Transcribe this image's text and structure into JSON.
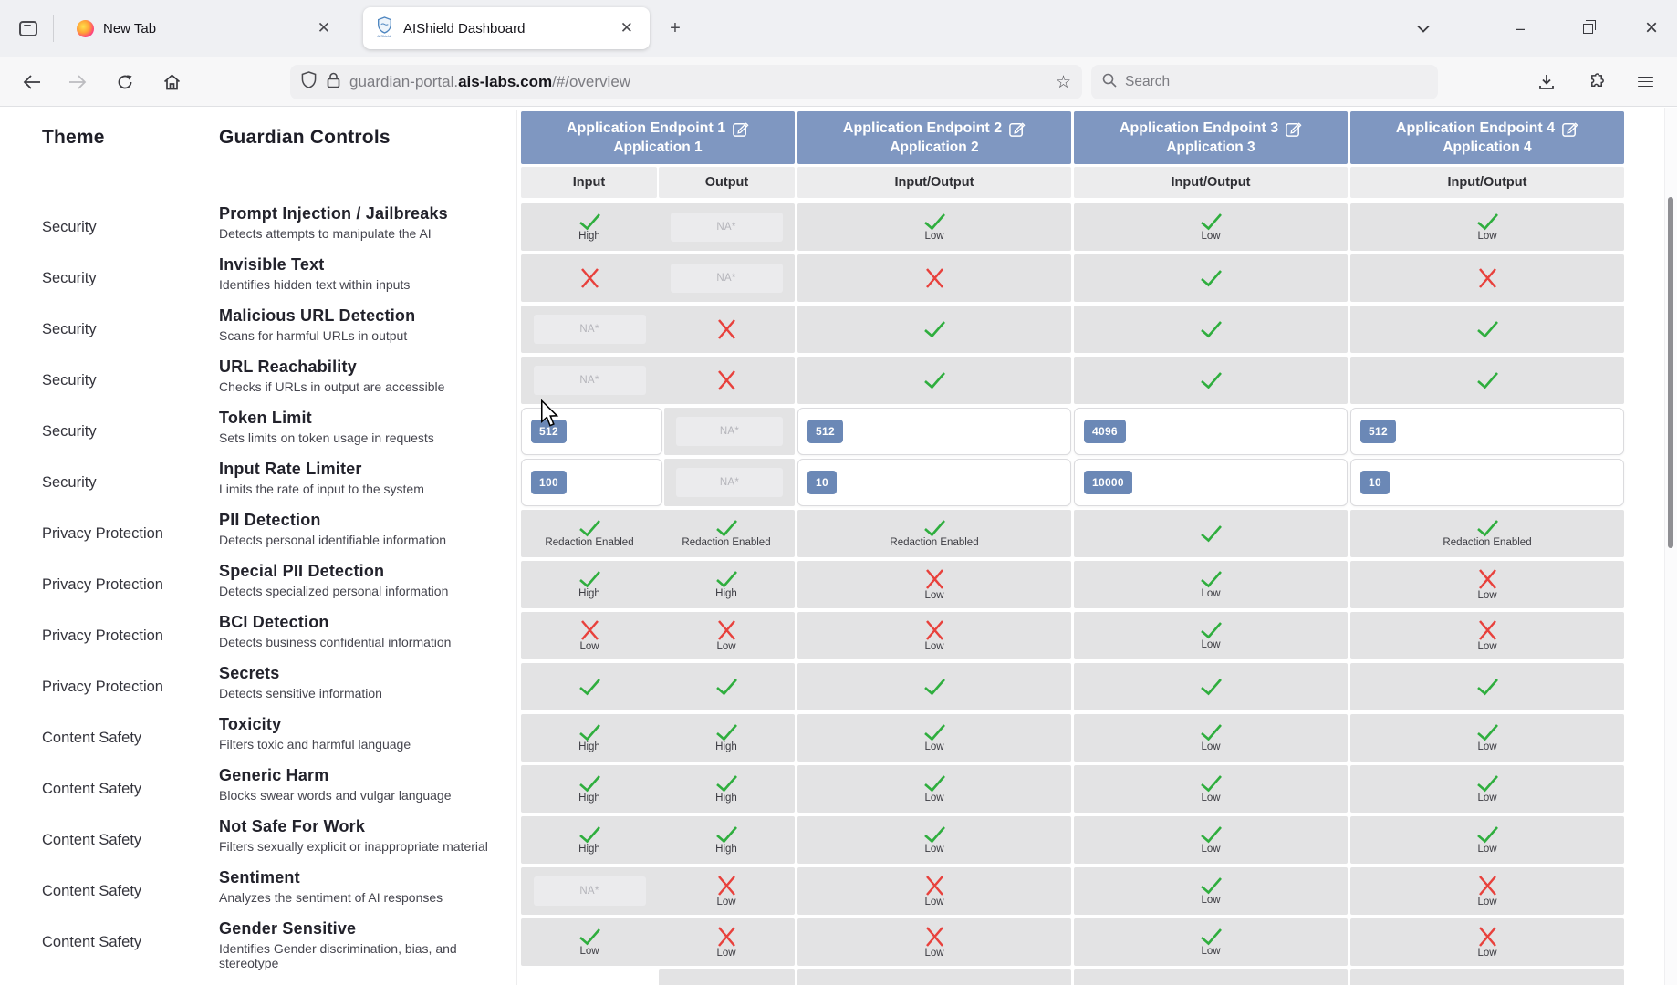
{
  "browser": {
    "tabs": [
      {
        "label": "New Tab",
        "active": false
      },
      {
        "label": "AIShield Dashboard",
        "active": true
      }
    ],
    "new_tab_button": "+",
    "url": {
      "prefix": "guardian-portal.",
      "domain": "ais-labs.com",
      "path": "/#/overview"
    },
    "search_placeholder": "Search",
    "window_controls": {
      "minimize": "–",
      "close": "×"
    }
  },
  "page": {
    "theme_header": "Theme",
    "controls_header": "Guardian Controls",
    "na_text": "NA*"
  },
  "table": {
    "apps": [
      {
        "endpoint": "Application Endpoint 1",
        "name": "Application 1",
        "subcols": [
          "Input",
          "Output"
        ]
      },
      {
        "endpoint": "Application Endpoint 2",
        "name": "Application 2",
        "subcols": [
          "Input/Output"
        ]
      },
      {
        "endpoint": "Application Endpoint 3",
        "name": "Application 3",
        "subcols": [
          "Input/Output"
        ]
      },
      {
        "endpoint": "Application Endpoint 4",
        "name": "Application 4",
        "subcols": [
          "Input/Output"
        ]
      }
    ],
    "rows": [
      {
        "theme": "Security",
        "title": "Prompt Injection / Jailbreaks",
        "desc": "Detects attempts to manipulate the AI",
        "cells": [
          {
            "t": "check",
            "label": "High"
          },
          {
            "t": "na"
          },
          {
            "t": "check",
            "label": "Low"
          },
          {
            "t": "check",
            "label": "Low"
          },
          {
            "t": "check",
            "label": "Low"
          }
        ]
      },
      {
        "theme": "Security",
        "title": "Invisible Text",
        "desc": "Identifies hidden text within inputs",
        "cells": [
          {
            "t": "cross"
          },
          {
            "t": "na"
          },
          {
            "t": "cross"
          },
          {
            "t": "check"
          },
          {
            "t": "cross"
          }
        ]
      },
      {
        "theme": "Security",
        "title": "Malicious URL Detection",
        "desc": "Scans for harmful URLs in output",
        "cells": [
          {
            "t": "na"
          },
          {
            "t": "cross"
          },
          {
            "t": "check"
          },
          {
            "t": "check"
          },
          {
            "t": "check"
          }
        ]
      },
      {
        "theme": "Security",
        "title": "URL Reachability",
        "desc": "Checks if URLs in output are accessible",
        "cells": [
          {
            "t": "na"
          },
          {
            "t": "cross"
          },
          {
            "t": "check"
          },
          {
            "t": "check"
          },
          {
            "t": "check"
          }
        ]
      },
      {
        "theme": "Security",
        "title": "Token Limit",
        "desc": "Sets limits on token usage in requests",
        "cells": [
          {
            "t": "input",
            "value": "512"
          },
          {
            "t": "na"
          },
          {
            "t": "input",
            "value": "512"
          },
          {
            "t": "input",
            "value": "4096"
          },
          {
            "t": "input",
            "value": "512"
          }
        ]
      },
      {
        "theme": "Security",
        "title": "Input Rate Limiter",
        "desc": "Limits the rate of input to the system",
        "cells": [
          {
            "t": "input",
            "value": "100"
          },
          {
            "t": "na"
          },
          {
            "t": "input",
            "value": "10"
          },
          {
            "t": "input",
            "value": "10000"
          },
          {
            "t": "input",
            "value": "10"
          }
        ]
      },
      {
        "theme": "Privacy Protection",
        "title": "PII Detection",
        "desc": "Detects personal identifiable information",
        "cells": [
          {
            "t": "check",
            "label": "Redaction Enabled"
          },
          {
            "t": "check",
            "label": "Redaction Enabled"
          },
          {
            "t": "check",
            "label": "Redaction Enabled"
          },
          {
            "t": "check"
          },
          {
            "t": "check",
            "label": "Redaction Enabled"
          }
        ]
      },
      {
        "theme": "Privacy Protection",
        "title": "Special PII Detection",
        "desc": "Detects specialized personal information",
        "cells": [
          {
            "t": "check",
            "label": "High"
          },
          {
            "t": "check",
            "label": "High"
          },
          {
            "t": "cross",
            "label": "Low"
          },
          {
            "t": "check",
            "label": "Low"
          },
          {
            "t": "cross",
            "label": "Low"
          }
        ]
      },
      {
        "theme": "Privacy Protection",
        "title": "BCI Detection",
        "desc": "Detects business confidential information",
        "cells": [
          {
            "t": "cross",
            "label": "Low"
          },
          {
            "t": "cross",
            "label": "Low"
          },
          {
            "t": "cross",
            "label": "Low"
          },
          {
            "t": "check",
            "label": "Low"
          },
          {
            "t": "cross",
            "label": "Low"
          }
        ]
      },
      {
        "theme": "Privacy Protection",
        "title": "Secrets",
        "desc": "Detects sensitive information",
        "cells": [
          {
            "t": "check"
          },
          {
            "t": "check"
          },
          {
            "t": "check"
          },
          {
            "t": "check"
          },
          {
            "t": "check"
          }
        ]
      },
      {
        "theme": "Content Safety",
        "title": "Toxicity",
        "desc": "Filters toxic and harmful language",
        "cells": [
          {
            "t": "check",
            "label": "High"
          },
          {
            "t": "check",
            "label": "High"
          },
          {
            "t": "check",
            "label": "Low"
          },
          {
            "t": "check",
            "label": "Low"
          },
          {
            "t": "check",
            "label": "Low"
          }
        ]
      },
      {
        "theme": "Content Safety",
        "title": "Generic Harm",
        "desc": "Blocks swear words and vulgar language",
        "cells": [
          {
            "t": "check",
            "label": "High"
          },
          {
            "t": "check",
            "label": "High"
          },
          {
            "t": "check",
            "label": "Low"
          },
          {
            "t": "check",
            "label": "Low"
          },
          {
            "t": "check",
            "label": "Low"
          }
        ]
      },
      {
        "theme": "Content Safety",
        "title": "Not Safe For Work",
        "desc": "Filters sexually explicit or inappropriate material",
        "cells": [
          {
            "t": "check",
            "label": "High"
          },
          {
            "t": "check",
            "label": "High"
          },
          {
            "t": "check",
            "label": "Low"
          },
          {
            "t": "check",
            "label": "Low"
          },
          {
            "t": "check",
            "label": "Low"
          }
        ]
      },
      {
        "theme": "Content Safety",
        "title": "Sentiment",
        "desc": "Analyzes the sentiment of AI responses",
        "cells": [
          {
            "t": "na"
          },
          {
            "t": "cross",
            "label": "Low"
          },
          {
            "t": "cross",
            "label": "Low"
          },
          {
            "t": "check",
            "label": "Low"
          },
          {
            "t": "cross",
            "label": "Low"
          }
        ]
      },
      {
        "theme": "Content Safety",
        "title": "Gender Sensitive",
        "desc": "Identifies Gender discrimination, bias, and stereotype",
        "cells": [
          {
            "t": "check",
            "label": "Low"
          },
          {
            "t": "cross",
            "label": "Low"
          },
          {
            "t": "cross",
            "label": "Low"
          },
          {
            "t": "check",
            "label": "Low"
          },
          {
            "t": "cross",
            "label": "Low"
          }
        ]
      }
    ]
  },
  "colors": {
    "header_blue": "#7f97c1",
    "badge_blue": "#6b88b6",
    "check_green": "#2fae3e",
    "cross_red": "#e8413c",
    "cell_gray": "#e3e3e4",
    "subheader_gray": "#ececed"
  },
  "icons": [
    "firefox-view-icon",
    "firefox-logo-icon",
    "shield-favicon-icon",
    "close-icon",
    "new-tab-icon",
    "tabs-chevron-icon",
    "minimize-icon",
    "restore-icon",
    "window-close-icon",
    "back-icon",
    "forward-icon",
    "reload-icon",
    "home-icon",
    "tracking-shield-icon",
    "lock-icon",
    "bookmark-star-icon",
    "search-icon",
    "download-icon",
    "extensions-icon",
    "menu-icon",
    "edit-icon",
    "check-icon",
    "cross-icon",
    "mouse-cursor-icon"
  ]
}
